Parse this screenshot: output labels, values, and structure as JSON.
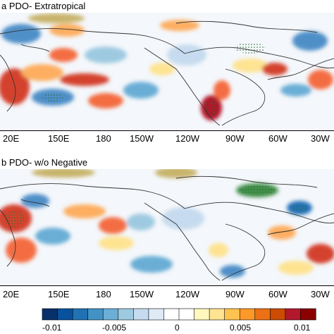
{
  "panels": [
    {
      "title": "a  PDO- Extratropical",
      "x_ticks": [
        "20E",
        "150E",
        "180",
        "150W",
        "120W",
        "90W",
        "60W",
        "30W"
      ]
    },
    {
      "title": "b  PDO- w/o Negative",
      "x_ticks": [
        "20E",
        "150E",
        "180",
        "150W",
        "120W",
        "90W",
        "60W",
        "30W"
      ]
    }
  ],
  "colorbar": {
    "tick_labels": [
      "-0.01",
      "-0.005",
      "0",
      "0.005",
      "0.01"
    ],
    "colors": [
      "#08306b",
      "#08519c",
      "#2171b5",
      "#4292c6",
      "#6baed6",
      "#9ecae1",
      "#c6dbef",
      "#deebf7",
      "#ffffff",
      "#ffffff",
      "#fff7bc",
      "#fee391",
      "#fec44f",
      "#fe9929",
      "#ec7014",
      "#cc4c02",
      "#b2182b",
      "#8b0000"
    ]
  },
  "land_colors": {
    "positive_shade": "#c8b46a",
    "negative_shade": "#3f8f4a",
    "stipple": "#2e6b2e"
  }
}
